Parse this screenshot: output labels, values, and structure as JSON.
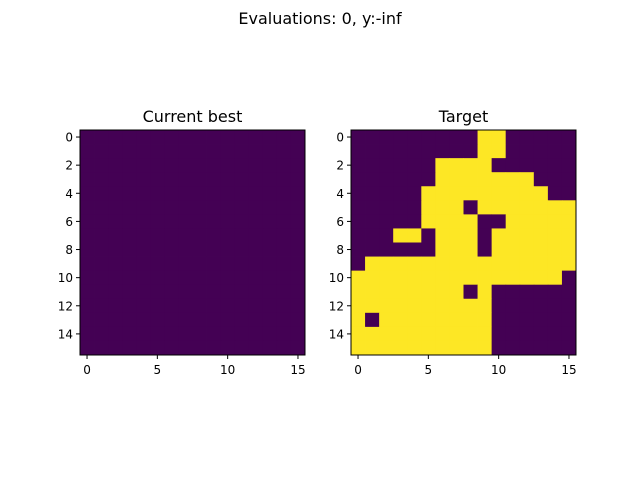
{
  "figure": {
    "suptitle": "Evaluations: 0, y:-inf"
  },
  "chart_data": [
    {
      "type": "heatmap",
      "title": "Current best",
      "xlabel": "",
      "ylabel": "",
      "grid_size": [
        16,
        16
      ],
      "x_ticks": [
        0,
        5,
        10,
        15
      ],
      "y_ticks": [
        0,
        2,
        4,
        6,
        8,
        10,
        12,
        14
      ],
      "xlim": [
        -0.5,
        15.5
      ],
      "ylim": [
        15.5,
        -0.5
      ],
      "grid": false,
      "colormap": {
        "0": "#440154",
        "1": "#fde725"
      },
      "rows": [
        "0000000000000000",
        "0000000000000000",
        "0000000000000000",
        "0000000000000000",
        "0000000000000000",
        "0000000000000000",
        "0000000000000000",
        "0000000000000000",
        "0000000000000000",
        "0000000000000000",
        "0000000000000000",
        "0000000000000000",
        "0000000000000000",
        "0000000000000000",
        "0000000000000000",
        "0000000000000000"
      ]
    },
    {
      "type": "heatmap",
      "title": "Target",
      "xlabel": "",
      "ylabel": "",
      "grid_size": [
        16,
        16
      ],
      "x_ticks": [
        0,
        5,
        10,
        15
      ],
      "y_ticks": [
        0,
        2,
        4,
        6,
        8,
        10,
        12,
        14
      ],
      "xlim": [
        -0.5,
        15.5
      ],
      "ylim": [
        15.5,
        -0.5
      ],
      "grid": false,
      "colormap": {
        "0": "#440154",
        "1": "#fde725"
      },
      "rows": [
        "0000000001100000",
        "0000000001100000",
        "0000001111000000",
        "0000001111111000",
        "0000011111111100",
        "0000011101111111",
        "0000011110011111",
        "0001101110111111",
        "0000001110111111",
        "0111111111111111",
        "1111111111111110",
        "1111111101000000",
        "1111111111000000",
        "1011111111000000",
        "1111111111000000",
        "1111111111000000"
      ]
    }
  ]
}
